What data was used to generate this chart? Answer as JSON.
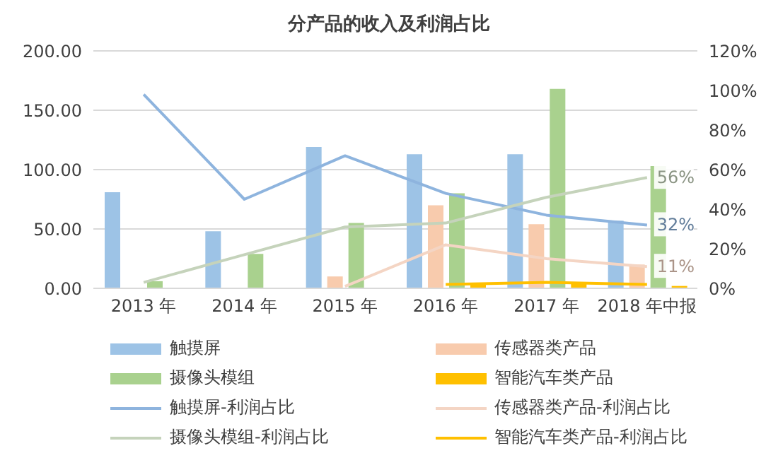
{
  "chart_data": {
    "type": "bar",
    "title": "分产品的收入及利润占比",
    "categories": [
      "2013 年",
      "2014 年",
      "2015 年",
      "2016 年",
      "2017 年",
      "2018 年中报"
    ],
    "series": [
      {
        "name": "触摸屏",
        "color": "#9dc3e6",
        "values": [
          81,
          48,
          119,
          113,
          113,
          57
        ]
      },
      {
        "name": "传感器类产品",
        "color": "#f8cbad",
        "values": [
          0,
          0,
          10,
          70,
          54,
          20
        ]
      },
      {
        "name": "摄像头模组",
        "color": "#a9d18e",
        "values": [
          6,
          29,
          55,
          80,
          168,
          103
        ]
      },
      {
        "name": "智能汽车类产品",
        "color": "#ffc000",
        "values": [
          null,
          null,
          null,
          3,
          4,
          2
        ]
      },
      {
        "name": "触摸屏-利润占比",
        "type": "line",
        "axis": "y2",
        "color": "#8eb4de",
        "values": [
          98,
          45,
          67,
          48,
          37,
          32
        ],
        "value_labels": [
          null,
          null,
          null,
          null,
          null,
          "32%"
        ]
      },
      {
        "name": "传感器类产品-利润占比",
        "type": "line",
        "axis": "y2",
        "color": "#f4d5c4",
        "values": [
          null,
          null,
          1,
          22,
          15,
          11
        ],
        "value_labels": [
          null,
          null,
          null,
          null,
          null,
          "11%"
        ]
      },
      {
        "name": "摄像头模组-利润占比",
        "type": "line",
        "axis": "y2",
        "color": "#c5d3bb",
        "values": [
          3,
          17,
          31,
          33,
          46,
          56
        ],
        "value_labels": [
          null,
          null,
          null,
          null,
          null,
          "56%"
        ]
      },
      {
        "name": "智能汽车类产品-利润占比",
        "type": "line",
        "axis": "y2",
        "color": "#ffc000",
        "values": [
          null,
          null,
          null,
          2,
          3,
          2
        ]
      }
    ],
    "ylim": [
      0,
      200
    ],
    "yticks": [
      {
        "value": 0,
        "label": "0.00"
      },
      {
        "value": 50,
        "label": "50.00"
      },
      {
        "value": 100,
        "label": "100.00"
      },
      {
        "value": 150,
        "label": "150.00"
      },
      {
        "value": 200,
        "label": "200.00"
      }
    ],
    "y2lim": [
      0,
      120
    ],
    "y2ticks": [
      {
        "value": 0,
        "label": "0%"
      },
      {
        "value": 20,
        "label": "20%"
      },
      {
        "value": 40,
        "label": "40%"
      },
      {
        "value": 60,
        "label": "60%"
      },
      {
        "value": 80,
        "label": "80%"
      },
      {
        "value": 100,
        "label": "100%"
      },
      {
        "value": 120,
        "label": "120%"
      }
    ],
    "grid": "y",
    "legend": "bottom",
    "marker": "none",
    "line_style": "solid"
  }
}
